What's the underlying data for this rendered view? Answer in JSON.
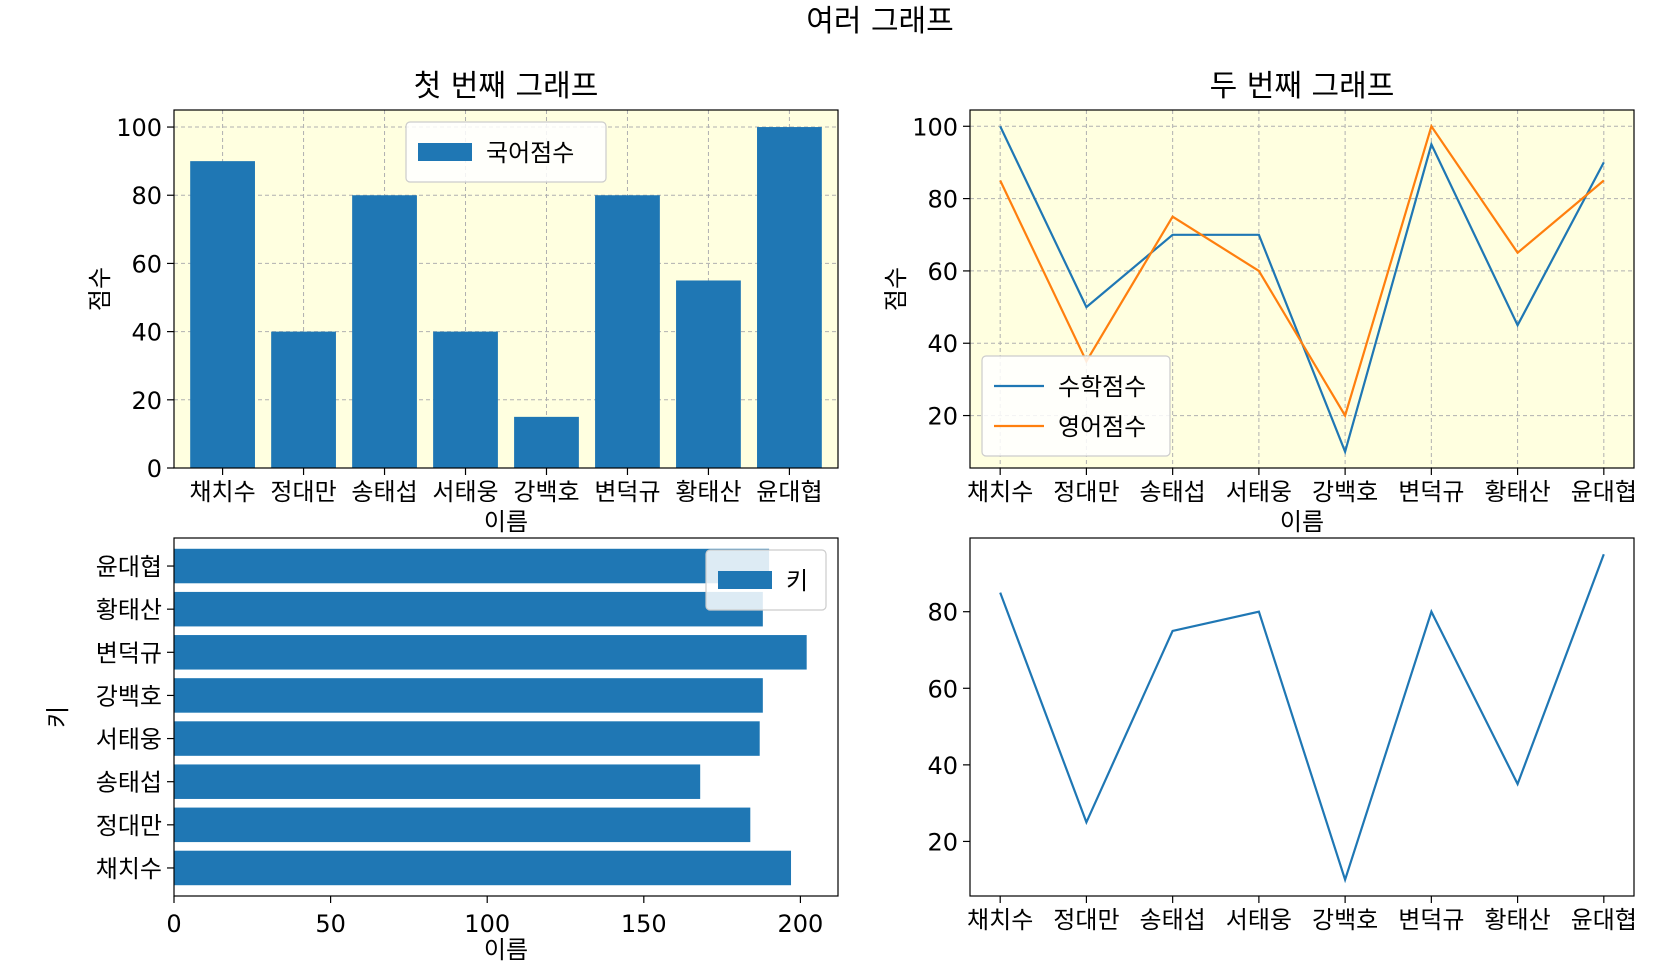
{
  "figure": {
    "suptitle": "여러 그래프"
  },
  "chart_data": [
    {
      "type": "bar",
      "title": "첫 번째 그래프",
      "xlabel": "이름",
      "ylabel": "점수",
      "categories": [
        "채치수",
        "정대만",
        "송태섭",
        "서태웅",
        "강백호",
        "변덕규",
        "황태산",
        "윤대협"
      ],
      "series": [
        {
          "name": "국어점수",
          "values": [
            90,
            40,
            80,
            40,
            15,
            80,
            55,
            100
          ]
        }
      ],
      "ylim": [
        0,
        105
      ],
      "yticks": [
        0,
        20,
        40,
        60,
        80,
        100
      ],
      "grid": true,
      "legend": "upper center",
      "facecolor": "#ffffe0",
      "colors": [
        "#1f77b4"
      ]
    },
    {
      "type": "line",
      "title": "두 번째 그래프",
      "xlabel": "이름",
      "ylabel": "점수",
      "categories": [
        "채치수",
        "정대만",
        "송태섭",
        "서태웅",
        "강백호",
        "변덕규",
        "황태산",
        "윤대협"
      ],
      "series": [
        {
          "name": "수학점수",
          "values": [
            100,
            50,
            70,
            70,
            10,
            95,
            45,
            90
          ]
        },
        {
          "name": "영어점수",
          "values": [
            85,
            35,
            75,
            60,
            20,
            100,
            65,
            85
          ]
        }
      ],
      "ylim": [
        5.5,
        104.5
      ],
      "yticks": [
        20,
        40,
        60,
        80,
        100
      ],
      "grid": true,
      "legend": "lower left",
      "facecolor": "#ffffe0",
      "colors": [
        "#1f77b4",
        "#ff7f0e"
      ]
    },
    {
      "type": "barh",
      "title": "",
      "xlabel": "이름",
      "ylabel": "키",
      "categories": [
        "채치수",
        "정대만",
        "송태섭",
        "서태웅",
        "강백호",
        "변덕규",
        "황태산",
        "윤대협"
      ],
      "series": [
        {
          "name": "키",
          "values": [
            197,
            184,
            168,
            187,
            188,
            202,
            188,
            190
          ]
        }
      ],
      "xlim": [
        0,
        212
      ],
      "xticks": [
        0,
        50,
        100,
        150,
        200
      ],
      "grid": false,
      "legend": "upper right",
      "facecolor": "#ffffff",
      "colors": [
        "#1f77b4"
      ]
    },
    {
      "type": "line",
      "title": "",
      "xlabel": "",
      "ylabel": "",
      "categories": [
        "채치수",
        "정대만",
        "송태섭",
        "서태웅",
        "강백호",
        "변덕규",
        "황태산",
        "윤대협"
      ],
      "series": [
        {
          "values": [
            85,
            25,
            75,
            80,
            10,
            80,
            35,
            95
          ]
        }
      ],
      "ylim": [
        5.75,
        99.25
      ],
      "yticks": [
        20,
        40,
        60,
        80
      ],
      "grid": false,
      "legend": "none",
      "facecolor": "#ffffff",
      "colors": [
        "#1f77b4"
      ]
    }
  ]
}
